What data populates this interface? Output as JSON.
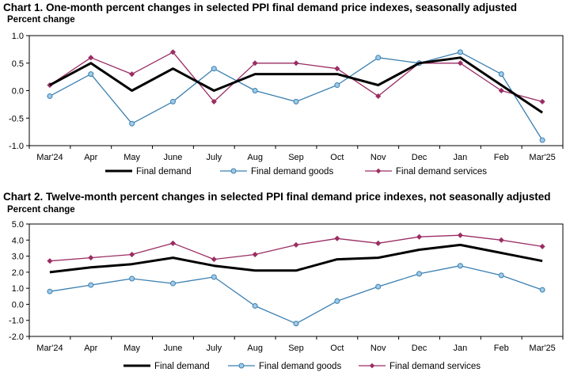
{
  "chart_data": [
    {
      "type": "line",
      "title": "Chart 1. One-month percent changes in selected PPI final demand price indexes, seasonally adjusted",
      "ylabel": "Percent change",
      "categories": [
        "Mar'24",
        "Apr",
        "May",
        "June",
        "July",
        "Aug",
        "Sep",
        "Oct",
        "Nov",
        "Dec",
        "Jan",
        "Feb",
        "Mar'25"
      ],
      "ylim": [
        -1.0,
        1.0
      ],
      "yticks": [
        -1.0,
        -0.5,
        0.0,
        0.5,
        1.0
      ],
      "ytick_labels": [
        "-1.0",
        "-0.5",
        "0.0",
        "0.5",
        "1.0"
      ],
      "series": [
        {
          "name": "Final demand",
          "color": "#000000",
          "marker": "none",
          "values": [
            0.1,
            0.5,
            0.0,
            0.4,
            0.0,
            0.3,
            0.3,
            0.3,
            0.1,
            0.5,
            0.6,
            0.1,
            -0.4
          ]
        },
        {
          "name": "Final demand goods",
          "color": "#3b7fb0",
          "marker": "circle",
          "values": [
            -0.1,
            0.3,
            -0.6,
            -0.2,
            0.4,
            0.0,
            -0.2,
            0.1,
            0.6,
            0.5,
            0.7,
            0.3,
            -0.9
          ]
        },
        {
          "name": "Final demand services",
          "color": "#9b2d63",
          "marker": "diamond",
          "values": [
            0.1,
            0.6,
            0.3,
            0.7,
            -0.2,
            0.5,
            0.5,
            0.4,
            -0.1,
            0.5,
            0.5,
            0.0,
            -0.2
          ]
        }
      ]
    },
    {
      "type": "line",
      "title": "Chart 2. Twelve-month percent changes in selected PPI final demand price indexes, not seasonally adjusted",
      "ylabel": "Percent change",
      "categories": [
        "Mar'24",
        "Apr",
        "May",
        "June",
        "July",
        "Aug",
        "Sep",
        "Oct",
        "Nov",
        "Dec",
        "Jan",
        "Feb",
        "Mar'25"
      ],
      "ylim": [
        -2.0,
        5.0
      ],
      "yticks": [
        -2.0,
        -1.0,
        0.0,
        1.0,
        2.0,
        3.0,
        4.0,
        5.0
      ],
      "ytick_labels": [
        "-2.0",
        "-1.0",
        "0.0",
        "1.0",
        "2.0",
        "3.0",
        "4.0",
        "5.0"
      ],
      "series": [
        {
          "name": "Final demand",
          "color": "#000000",
          "marker": "none",
          "values": [
            2.0,
            2.3,
            2.5,
            2.9,
            2.4,
            2.1,
            2.1,
            2.8,
            2.9,
            3.4,
            3.7,
            3.2,
            2.7
          ]
        },
        {
          "name": "Final demand goods",
          "color": "#3b7fb0",
          "marker": "circle",
          "values": [
            0.8,
            1.2,
            1.6,
            1.3,
            1.7,
            -0.1,
            -1.2,
            0.2,
            1.1,
            1.9,
            2.4,
            1.8,
            0.9
          ]
        },
        {
          "name": "Final demand services",
          "color": "#9b2d63",
          "marker": "diamond",
          "values": [
            2.7,
            2.9,
            3.1,
            3.8,
            2.8,
            3.1,
            3.7,
            4.1,
            3.8,
            4.2,
            4.3,
            4.0,
            3.6
          ]
        }
      ]
    }
  ]
}
